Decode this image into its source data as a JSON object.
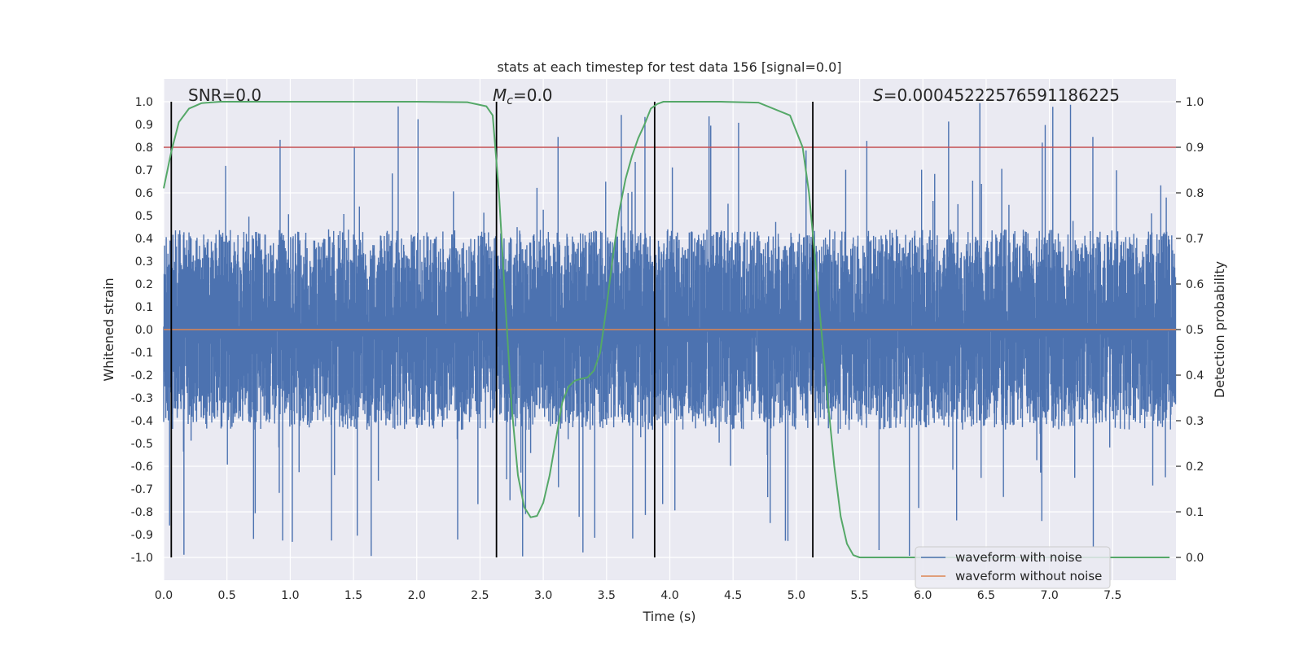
{
  "chart_data": {
    "type": "line",
    "title": "stats at each timestep for test data 156 [signal=0.0]",
    "xlabel": "Time (s)",
    "ylabel_left": "Whitened strain",
    "ylabel_right": "Detection probability",
    "xlim": [
      0.0,
      8.0
    ],
    "ylim_left": [
      -1.1,
      1.1
    ],
    "ylim_right": [
      -0.05,
      1.05
    ],
    "x_ticks": [
      "0.0",
      "0.5",
      "1.0",
      "1.5",
      "2.0",
      "2.5",
      "3.0",
      "3.5",
      "4.0",
      "4.5",
      "5.0",
      "5.5",
      "6.0",
      "6.5",
      "7.0",
      "7.5"
    ],
    "y_ticks_left": [
      "1.0",
      "0.9",
      "0.8",
      "0.7",
      "0.6",
      "0.5",
      "0.4",
      "0.3",
      "0.2",
      "0.1",
      "0.0",
      "-0.1",
      "-0.2",
      "-0.3",
      "-0.4",
      "-0.5",
      "-0.6",
      "-0.7",
      "-0.8",
      "-0.9",
      "-1.0"
    ],
    "y_ticks_right": [
      "1.0",
      "0.9",
      "0.8",
      "0.7",
      "0.6",
      "0.5",
      "0.4",
      "0.3",
      "0.2",
      "0.1",
      "0.0"
    ],
    "grid": true,
    "legend_position": "lower-right",
    "annotations": {
      "snr": "SNR=0.0",
      "mc_symbol": "M",
      "mc_sub": "c",
      "mc_value": "=0.0",
      "s_symbol": "S",
      "s_value": "=0.00045222576591186225"
    },
    "series": [
      {
        "name": "waveform with noise",
        "color": "#4c72b0",
        "description_kind": "noise",
        "typical_amplitude": 0.4,
        "max_amplitude": 1.0
      },
      {
        "name": "waveform without noise",
        "color": "#dd8452",
        "y_constant": 0.0
      },
      {
        "color": "#55a868",
        "axis": "right",
        "x": [
          0.0,
          0.06,
          0.12,
          0.2,
          0.3,
          0.45,
          0.7,
          1.0,
          1.5,
          2.0,
          2.4,
          2.55,
          2.6,
          2.65,
          2.7,
          2.75,
          2.8,
          2.85,
          2.9,
          2.95,
          3.0,
          3.05,
          3.1,
          3.15,
          3.2,
          3.25,
          3.3,
          3.35,
          3.4,
          3.45,
          3.5,
          3.55,
          3.6,
          3.65,
          3.7,
          3.75,
          3.8,
          3.85,
          3.9,
          3.95,
          4.0,
          4.05,
          4.1,
          4.2,
          4.4,
          4.7,
          4.95,
          5.05,
          5.1,
          5.15,
          5.2,
          5.25,
          5.3,
          5.35,
          5.4,
          5.45,
          5.5,
          5.55,
          5.6,
          5.7,
          6.0,
          7.0,
          7.95
        ],
        "y": [
          0.81,
          0.89,
          0.955,
          0.985,
          0.997,
          1.0,
          1.0,
          1.0,
          1.0,
          1.0,
          0.999,
          0.99,
          0.97,
          0.8,
          0.56,
          0.33,
          0.18,
          0.11,
          0.088,
          0.091,
          0.12,
          0.18,
          0.26,
          0.34,
          0.375,
          0.388,
          0.392,
          0.395,
          0.41,
          0.45,
          0.55,
          0.66,
          0.76,
          0.83,
          0.88,
          0.92,
          0.95,
          0.985,
          0.995,
          1.0,
          1.0,
          1.0,
          1.0,
          1.0,
          1.0,
          0.998,
          0.97,
          0.9,
          0.8,
          0.65,
          0.49,
          0.34,
          0.2,
          0.09,
          0.03,
          0.005,
          0.0,
          0.0,
          0.0,
          0.0,
          0.0,
          0.0,
          0.0
        ]
      },
      {
        "color": "#c44e52",
        "axis": "right",
        "y_constant": 0.9
      }
    ],
    "vertical_lines_x": [
      0.06,
      2.63,
      3.88,
      5.13
    ],
    "vertical_lines_color": "#000000"
  }
}
